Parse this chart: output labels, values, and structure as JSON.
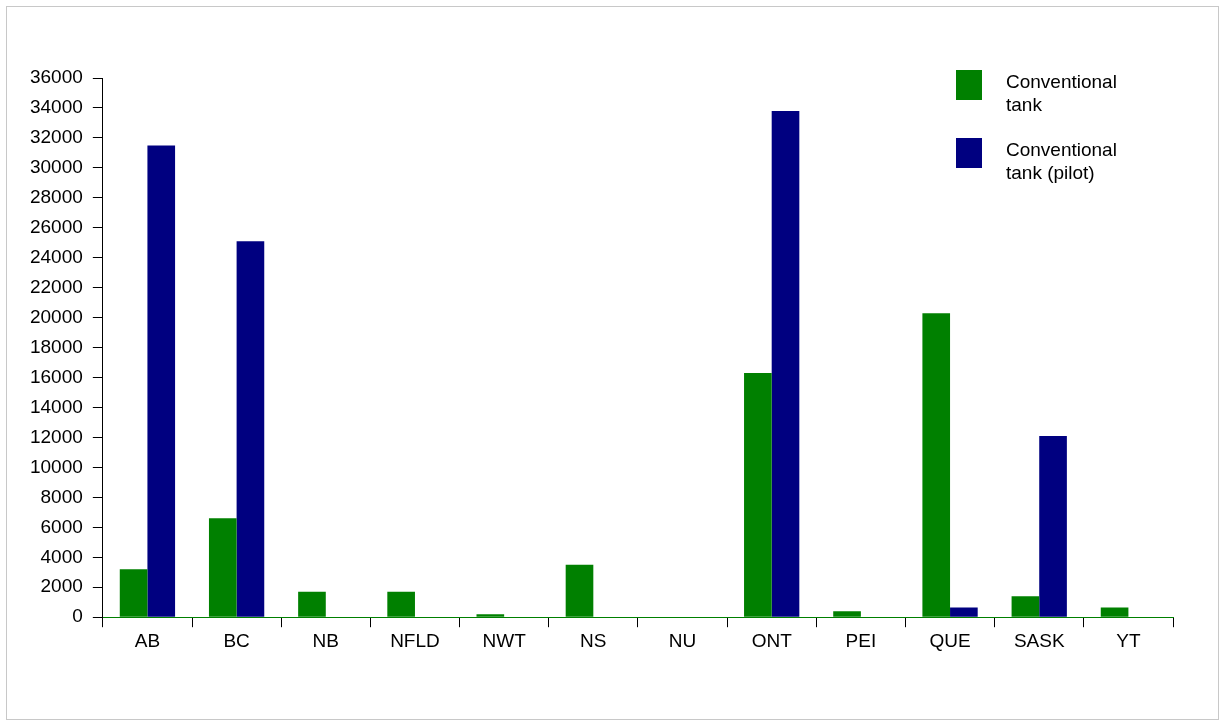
{
  "chart_data": {
    "type": "bar",
    "categories": [
      "AB",
      "BC",
      "NB",
      "NFLD",
      "NWT",
      "NS",
      "NU",
      "ONT",
      "PEI",
      "QUE",
      "SASK",
      "YT"
    ],
    "series": [
      {
        "name": "Conventional tank",
        "color": "#008000",
        "values": [
          3200,
          6600,
          1700,
          1700,
          200,
          3500,
          0,
          16300,
          400,
          20300,
          1400,
          650
        ]
      },
      {
        "name": "Conventional tank (pilot)",
        "color": "#000080",
        "values": [
          31500,
          25100,
          0,
          0,
          0,
          0,
          0,
          33800,
          0,
          650,
          12100,
          0
        ]
      }
    ],
    "ylim": [
      0,
      36000
    ],
    "yticks": [
      0,
      2000,
      4000,
      6000,
      8000,
      10000,
      12000,
      14000,
      16000,
      18000,
      20000,
      22000,
      24000,
      26000,
      28000,
      30000,
      32000,
      34000,
      36000
    ],
    "grid": false,
    "legend": "top right"
  }
}
